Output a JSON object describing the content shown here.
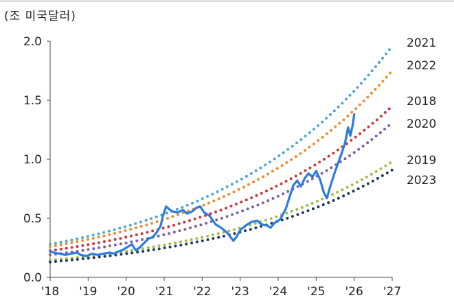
{
  "unit_label": "(조 미국달러)",
  "chart_data": {
    "type": "line",
    "title": "",
    "xlabel": "",
    "ylabel": "(조 미국달러)",
    "x_ticks": [
      "'18",
      "'19",
      "'20",
      "'21",
      "'22",
      "'23",
      "'24",
      "'25",
      "'26",
      "'27"
    ],
    "xlim": [
      2018,
      2027
    ],
    "y_ticks": [
      "0.0",
      "0.5",
      "1.0",
      "1.5",
      "2.0"
    ],
    "ylim": [
      0,
      2.0
    ],
    "grid": false,
    "trend_series": [
      {
        "name": "2021",
        "color": "#4aa9c8",
        "start": [
          2018.0,
          0.28
        ],
        "end": [
          2027.0,
          1.96
        ]
      },
      {
        "name": "2022",
        "color": "#f08a2e",
        "start": [
          2018.0,
          0.26
        ],
        "end": [
          2027.0,
          1.75
        ]
      },
      {
        "name": "2018",
        "color": "#c8373a",
        "start": [
          2018.0,
          0.225
        ],
        "end": [
          2027.0,
          1.45
        ]
      },
      {
        "name": "2020",
        "color": "#7d5fa6",
        "start": [
          2018.0,
          0.19
        ],
        "end": [
          2027.0,
          1.31
        ]
      },
      {
        "name": "2019",
        "color": "#9dbe4c",
        "start": [
          2018.0,
          0.145
        ],
        "end": [
          2027.0,
          0.98
        ]
      },
      {
        "name": "2023",
        "color": "#1d3a5a",
        "start": [
          2018.0,
          0.13
        ],
        "end": [
          2027.0,
          0.91
        ]
      }
    ],
    "actual_series": {
      "color": "#2a7ae2",
      "points": [
        [
          2018.0,
          0.22
        ],
        [
          2018.1,
          0.21
        ],
        [
          2018.25,
          0.2
        ],
        [
          2018.4,
          0.19
        ],
        [
          2018.55,
          0.2
        ],
        [
          2018.7,
          0.21
        ],
        [
          2018.8,
          0.19
        ],
        [
          2018.95,
          0.18
        ],
        [
          2019.1,
          0.2
        ],
        [
          2019.25,
          0.19
        ],
        [
          2019.4,
          0.2
        ],
        [
          2019.55,
          0.21
        ],
        [
          2019.7,
          0.2
        ],
        [
          2019.8,
          0.22
        ],
        [
          2019.9,
          0.23
        ],
        [
          2020.0,
          0.25
        ],
        [
          2020.15,
          0.28
        ],
        [
          2020.25,
          0.23
        ],
        [
          2020.35,
          0.25
        ],
        [
          2020.5,
          0.3
        ],
        [
          2020.6,
          0.33
        ],
        [
          2020.7,
          0.34
        ],
        [
          2020.8,
          0.38
        ],
        [
          2020.9,
          0.43
        ],
        [
          2020.97,
          0.52
        ],
        [
          2021.05,
          0.6
        ],
        [
          2021.2,
          0.56
        ],
        [
          2021.35,
          0.55
        ],
        [
          2021.5,
          0.57
        ],
        [
          2021.6,
          0.54
        ],
        [
          2021.75,
          0.56
        ],
        [
          2021.85,
          0.59
        ],
        [
          2021.95,
          0.6
        ],
        [
          2022.05,
          0.55
        ],
        [
          2022.2,
          0.52
        ],
        [
          2022.35,
          0.45
        ],
        [
          2022.5,
          0.42
        ],
        [
          2022.65,
          0.38
        ],
        [
          2022.75,
          0.34
        ],
        [
          2022.82,
          0.31
        ],
        [
          2022.9,
          0.34
        ],
        [
          2023.0,
          0.4
        ],
        [
          2023.15,
          0.44
        ],
        [
          2023.3,
          0.47
        ],
        [
          2023.45,
          0.48
        ],
        [
          2023.55,
          0.45
        ],
        [
          2023.7,
          0.44
        ],
        [
          2023.8,
          0.42
        ],
        [
          2023.9,
          0.46
        ],
        [
          2024.05,
          0.49
        ],
        [
          2024.2,
          0.58
        ],
        [
          2024.3,
          0.68
        ],
        [
          2024.4,
          0.78
        ],
        [
          2024.5,
          0.82
        ],
        [
          2024.6,
          0.77
        ],
        [
          2024.7,
          0.84
        ],
        [
          2024.8,
          0.88
        ],
        [
          2024.9,
          0.85
        ],
        [
          2025.0,
          0.9
        ],
        [
          2025.1,
          0.83
        ],
        [
          2025.2,
          0.72
        ],
        [
          2025.28,
          0.67
        ],
        [
          2025.38,
          0.78
        ],
        [
          2025.48,
          0.88
        ],
        [
          2025.58,
          0.97
        ],
        [
          2025.68,
          1.06
        ],
        [
          2025.76,
          1.14
        ],
        [
          2025.84,
          1.27
        ],
        [
          2025.9,
          1.2
        ],
        [
          2025.96,
          1.29
        ],
        [
          2026.0,
          1.38
        ]
      ]
    }
  }
}
